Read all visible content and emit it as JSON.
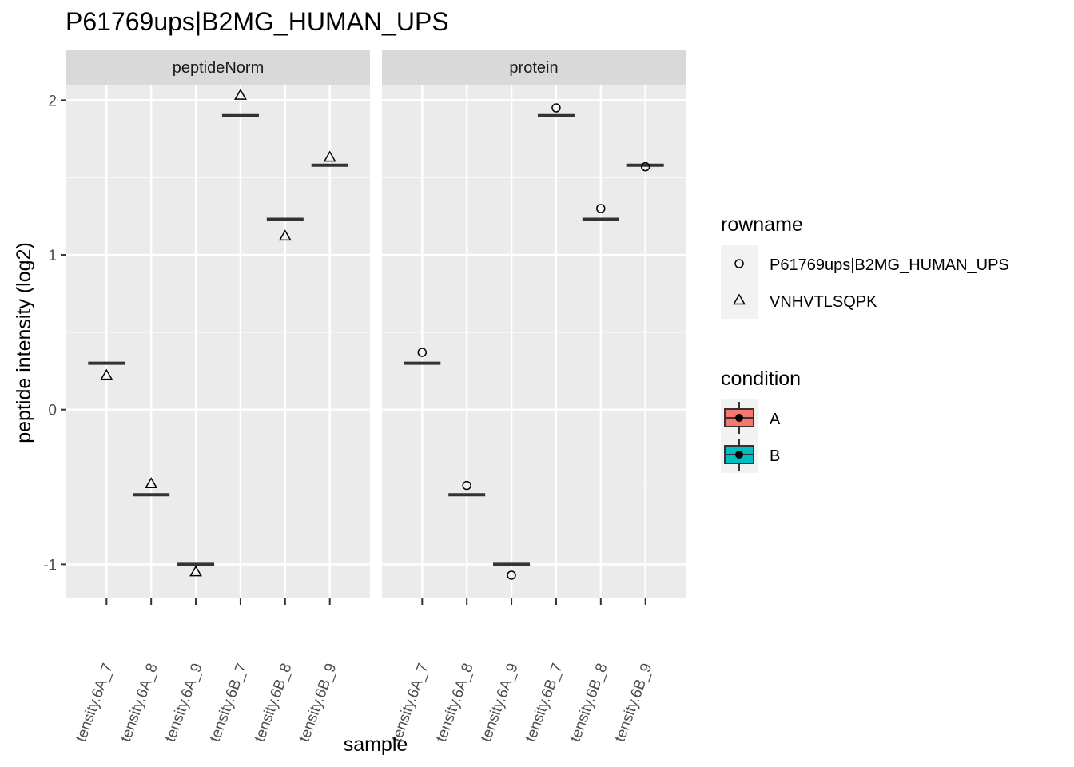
{
  "chart_data": {
    "type": "boxplot",
    "title": "P61769ups|B2MG_HUMAN_UPS",
    "xlabel": "sample",
    "ylabel": "peptide intensity (log2)",
    "ylim": [
      -1.22,
      2.1
    ],
    "yticks": [
      -1,
      0,
      1,
      2
    ],
    "yticks_labels": [
      "-1",
      "0",
      "1",
      "2"
    ],
    "categories": [
      "tensity.6A_7",
      "tensity.6A_8",
      "tensity.6A_9",
      "tensity.6B_7",
      "tensity.6B_8",
      "tensity.6B_9"
    ],
    "panels": [
      {
        "name": "peptideNorm",
        "box_medians": [
          0.3,
          -0.55,
          -1.0,
          1.9,
          1.23,
          1.58
        ],
        "point_shape": "triangle",
        "points": [
          0.22,
          -0.48,
          -1.05,
          2.03,
          1.12,
          1.63
        ]
      },
      {
        "name": "protein",
        "box_medians": [
          0.3,
          -0.55,
          -1.0,
          1.9,
          1.23,
          1.58
        ],
        "point_shape": "circle",
        "points": [
          0.37,
          -0.49,
          -1.07,
          1.95,
          1.3,
          1.57
        ]
      }
    ],
    "grid": true,
    "legend_position": "right",
    "legends": [
      {
        "title": "rowname",
        "entries": [
          {
            "label": "P61769ups|B2MG_HUMAN_UPS",
            "shape": "circle"
          },
          {
            "label": "VNHVTLSQPK",
            "shape": "triangle"
          }
        ]
      },
      {
        "title": "condition",
        "entries": [
          {
            "label": "A",
            "color": "#F8766D"
          },
          {
            "label": "B",
            "color": "#00BFC4"
          }
        ]
      }
    ]
  }
}
